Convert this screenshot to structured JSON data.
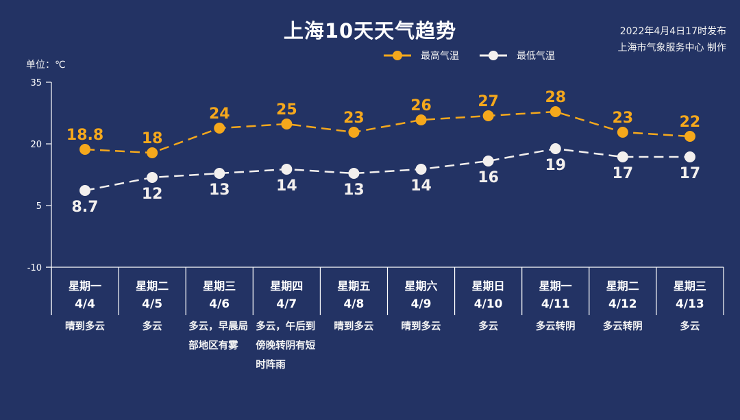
{
  "header": {
    "title": "上海10天天气趋势",
    "publish_time": "2022年4月4日17时发布",
    "producer": "上海市气象服务中心 制作",
    "unit": "单位：℃"
  },
  "legend": {
    "high_label": "最高气温",
    "low_label": "最低气温"
  },
  "colors": {
    "background": "#233364",
    "high": "#f5a81c",
    "low": "#f3f0ee",
    "axis": "#ffffff"
  },
  "days": [
    {
      "weekday": "星期一",
      "date": "4/4",
      "condition": "晴到多云"
    },
    {
      "weekday": "星期二",
      "date": "4/5",
      "condition": "多云"
    },
    {
      "weekday": "星期三",
      "date": "4/6",
      "condition": "多云，早晨局部地区有雾"
    },
    {
      "weekday": "星期四",
      "date": "4/7",
      "condition": "多云，午后到傍晚转阴有短时阵雨"
    },
    {
      "weekday": "星期五",
      "date": "4/8",
      "condition": "晴到多云"
    },
    {
      "weekday": "星期六",
      "date": "4/9",
      "condition": "晴到多云"
    },
    {
      "weekday": "星期日",
      "date": "4/10",
      "condition": "多云"
    },
    {
      "weekday": "星期一",
      "date": "4/11",
      "condition": "多云转阴"
    },
    {
      "weekday": "星期二",
      "date": "4/12",
      "condition": "多云转阴"
    },
    {
      "weekday": "星期三",
      "date": "4/13",
      "condition": "多云"
    }
  ],
  "chart_data": {
    "type": "line",
    "title": "上海10天天气趋势",
    "xlabel": "",
    "ylabel": "单位：℃",
    "ylim": [
      -10,
      35
    ],
    "yticks": [
      35,
      20,
      5,
      -10
    ],
    "categories": [
      "4/4",
      "4/5",
      "4/6",
      "4/7",
      "4/8",
      "4/9",
      "4/10",
      "4/11",
      "4/12",
      "4/13"
    ],
    "series": [
      {
        "name": "最高气温",
        "values": [
          18.8,
          18,
          24,
          25,
          23,
          26,
          27,
          28,
          23,
          22
        ],
        "labels": [
          "18.8",
          "18",
          "24",
          "25",
          "23",
          "26",
          "27",
          "28",
          "23",
          "22"
        ],
        "color": "#f5a81c",
        "style": "dashed",
        "marker": "circle"
      },
      {
        "name": "最低气温",
        "values": [
          8.7,
          12,
          13,
          14,
          13,
          14,
          16,
          19,
          17,
          17
        ],
        "labels": [
          "8.7",
          "12",
          "13",
          "14",
          "13",
          "14",
          "16",
          "19",
          "17",
          "17"
        ],
        "color": "#f3f0ee",
        "style": "dashed",
        "marker": "circle"
      }
    ],
    "legend_position": "top",
    "grid": false
  }
}
